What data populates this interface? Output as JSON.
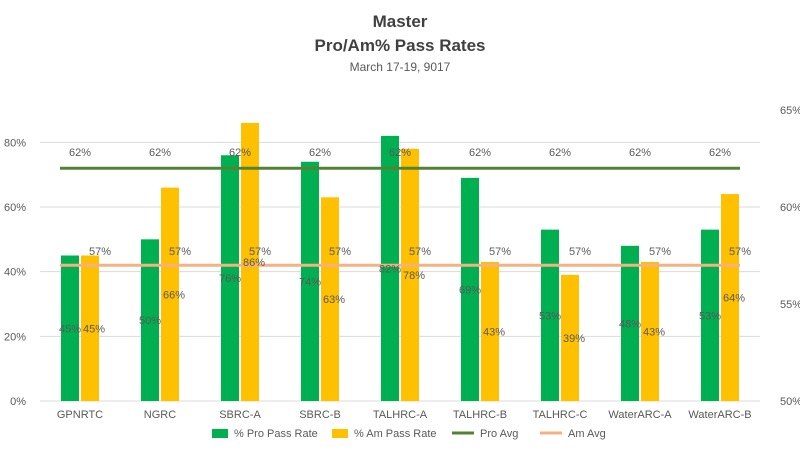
{
  "chart_data": {
    "type": "bar",
    "title": "Master",
    "subtitle_1": "Pro/Am% Pass Rates",
    "subtitle_2": "March 17-19, 9017",
    "categories": [
      "GPNRTC",
      "NGRC",
      "SBRC-A",
      "SBRC-B",
      "TALHRC-A",
      "TALHRC-B",
      "TALHRC-C",
      "WaterARC-A",
      "WaterARC-B"
    ],
    "series": [
      {
        "name": "% Pro Pass Rate",
        "color": "#00B050",
        "axis": "left",
        "values": [
          45,
          50,
          76,
          74,
          82,
          69,
          53,
          48,
          53
        ],
        "labels": [
          "45%",
          "50%",
          "76%",
          "74%",
          "82%",
          "69%",
          "53%",
          "48%",
          "53%"
        ]
      },
      {
        "name": "% Am Pass Rate",
        "color": "#FFC000",
        "axis": "left",
        "values": [
          45,
          66,
          86,
          63,
          78,
          43,
          39,
          43,
          64
        ],
        "labels": [
          "45%",
          "66%",
          "86%",
          "63%",
          "78%",
          "43%",
          "39%",
          "43%",
          "64%"
        ]
      },
      {
        "name": "Pro Avg",
        "type": "line",
        "color": "#548235",
        "axis": "right",
        "values": [
          62,
          62,
          62,
          62,
          62,
          62,
          62,
          62,
          62
        ],
        "labels": [
          "62%",
          "62%",
          "62%",
          "62%",
          "62%",
          "62%",
          "62%",
          "62%",
          "62%"
        ]
      },
      {
        "name": "Am Avg",
        "type": "line",
        "color": "#F4B183",
        "axis": "right",
        "values": [
          57,
          57,
          57,
          57,
          57,
          57,
          57,
          57,
          57
        ],
        "labels": [
          "57%",
          "57%",
          "57%",
          "57%",
          "57%",
          "57%",
          "57%",
          "57%",
          "57%"
        ]
      }
    ],
    "y_left": {
      "range": [
        0,
        90
      ],
      "ticks": [
        0,
        20,
        40,
        60,
        80
      ],
      "tick_labels": [
        "0%",
        "20%",
        "40%",
        "60%",
        "80%"
      ]
    },
    "y_right": {
      "range": [
        50,
        65
      ],
      "ticks": [
        50,
        55,
        60,
        65
      ],
      "tick_labels": [
        "50%",
        "55%",
        "60%",
        "65%"
      ]
    },
    "grid": true,
    "legend": "bottom"
  }
}
